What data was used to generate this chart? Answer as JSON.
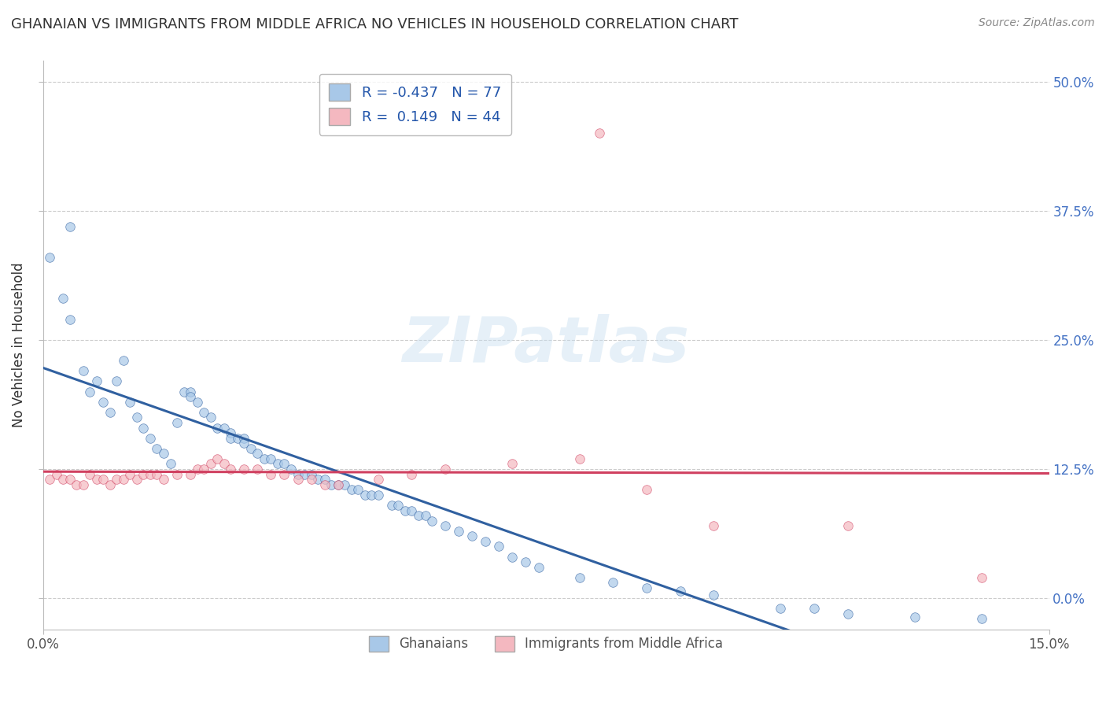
{
  "title": "GHANAIAN VS IMMIGRANTS FROM MIDDLE AFRICA NO VEHICLES IN HOUSEHOLD CORRELATION CHART",
  "source": "Source: ZipAtlas.com",
  "ylabel": "No Vehicles in Household",
  "xlim": [
    0.0,
    0.15
  ],
  "ylim": [
    -0.03,
    0.52
  ],
  "right_yticks": [
    0.0,
    0.125,
    0.25,
    0.375,
    0.5
  ],
  "right_yticklabels": [
    "0.0%",
    "12.5%",
    "25.0%",
    "37.5%",
    "50.0%"
  ],
  "ghanaian_color": "#a8c8e8",
  "immigrant_color": "#f4b8c0",
  "ghanaian_line_color": "#3060a0",
  "immigrant_line_color": "#d04060",
  "ghanaian_R": -0.437,
  "ghanaian_N": 77,
  "immigrant_R": 0.149,
  "immigrant_N": 44,
  "watermark": "ZIPatlas",
  "background_color": "#ffffff",
  "grid_color": "#cccccc",
  "ghanaian_x": [
    0.001,
    0.003,
    0.004,
    0.006,
    0.007,
    0.008,
    0.009,
    0.01,
    0.011,
    0.012,
    0.013,
    0.014,
    0.015,
    0.016,
    0.017,
    0.018,
    0.019,
    0.02,
    0.021,
    0.022,
    0.022,
    0.023,
    0.024,
    0.025,
    0.026,
    0.027,
    0.028,
    0.028,
    0.029,
    0.03,
    0.03,
    0.031,
    0.032,
    0.033,
    0.034,
    0.035,
    0.036,
    0.037,
    0.038,
    0.039,
    0.04,
    0.041,
    0.042,
    0.043,
    0.044,
    0.045,
    0.046,
    0.047,
    0.048,
    0.049,
    0.05,
    0.052,
    0.053,
    0.054,
    0.055,
    0.056,
    0.057,
    0.058,
    0.06,
    0.062,
    0.064,
    0.066,
    0.068,
    0.07,
    0.072,
    0.074,
    0.08,
    0.085,
    0.09,
    0.095,
    0.1,
    0.11,
    0.115,
    0.12,
    0.13,
    0.14,
    0.004
  ],
  "ghanaian_y": [
    0.33,
    0.29,
    0.27,
    0.22,
    0.2,
    0.21,
    0.19,
    0.18,
    0.21,
    0.23,
    0.19,
    0.175,
    0.165,
    0.155,
    0.145,
    0.14,
    0.13,
    0.17,
    0.2,
    0.2,
    0.195,
    0.19,
    0.18,
    0.175,
    0.165,
    0.165,
    0.16,
    0.155,
    0.155,
    0.155,
    0.15,
    0.145,
    0.14,
    0.135,
    0.135,
    0.13,
    0.13,
    0.125,
    0.12,
    0.12,
    0.12,
    0.115,
    0.115,
    0.11,
    0.11,
    0.11,
    0.105,
    0.105,
    0.1,
    0.1,
    0.1,
    0.09,
    0.09,
    0.085,
    0.085,
    0.08,
    0.08,
    0.075,
    0.07,
    0.065,
    0.06,
    0.055,
    0.05,
    0.04,
    0.035,
    0.03,
    0.02,
    0.015,
    0.01,
    0.007,
    0.003,
    -0.01,
    -0.01,
    -0.015,
    -0.018,
    -0.02,
    0.36
  ],
  "immigrant_x": [
    0.001,
    0.002,
    0.003,
    0.004,
    0.005,
    0.006,
    0.007,
    0.008,
    0.009,
    0.01,
    0.011,
    0.012,
    0.013,
    0.014,
    0.015,
    0.016,
    0.017,
    0.018,
    0.02,
    0.022,
    0.023,
    0.024,
    0.025,
    0.026,
    0.027,
    0.028,
    0.03,
    0.032,
    0.034,
    0.036,
    0.038,
    0.04,
    0.042,
    0.044,
    0.05,
    0.055,
    0.06,
    0.07,
    0.08,
    0.09,
    0.1,
    0.12,
    0.14,
    0.083
  ],
  "immigrant_y": [
    0.115,
    0.12,
    0.115,
    0.115,
    0.11,
    0.11,
    0.12,
    0.115,
    0.115,
    0.11,
    0.115,
    0.115,
    0.12,
    0.115,
    0.12,
    0.12,
    0.12,
    0.115,
    0.12,
    0.12,
    0.125,
    0.125,
    0.13,
    0.135,
    0.13,
    0.125,
    0.125,
    0.125,
    0.12,
    0.12,
    0.115,
    0.115,
    0.11,
    0.11,
    0.115,
    0.12,
    0.125,
    0.13,
    0.135,
    0.105,
    0.07,
    0.07,
    0.02,
    0.45
  ],
  "legend1_label1": "R = -0.437   N = 77",
  "legend1_label2": "R =  0.149   N = 44",
  "legend2_label1": "Ghanaians",
  "legend2_label2": "Immigrants from Middle Africa"
}
